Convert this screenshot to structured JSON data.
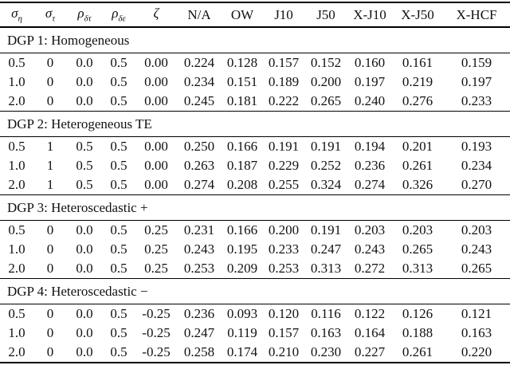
{
  "table": {
    "headers": [
      {
        "base": "σ",
        "sub": "η"
      },
      {
        "base": "σ",
        "sub": "τ"
      },
      {
        "base": "ρ",
        "sub": "δτ"
      },
      {
        "base": "ρ",
        "sub": "δε"
      },
      {
        "base": "ζ",
        "sub": ""
      },
      {
        "base": "N/A",
        "sub": ""
      },
      {
        "base": "OW",
        "sub": ""
      },
      {
        "base": "J10",
        "sub": ""
      },
      {
        "base": "J50",
        "sub": ""
      },
      {
        "base": "X-J10",
        "sub": ""
      },
      {
        "base": "X-J50",
        "sub": ""
      },
      {
        "base": "X-HCF",
        "sub": ""
      }
    ],
    "sections": [
      {
        "title": "DGP 1: Homogeneous",
        "rows": [
          [
            "0.5",
            "0",
            "0.0",
            "0.5",
            "0.00",
            "0.224",
            "0.128",
            "0.157",
            "0.152",
            "0.160",
            "0.161",
            "0.159"
          ],
          [
            "1.0",
            "0",
            "0.0",
            "0.5",
            "0.00",
            "0.234",
            "0.151",
            "0.189",
            "0.200",
            "0.197",
            "0.219",
            "0.197"
          ],
          [
            "2.0",
            "0",
            "0.0",
            "0.5",
            "0.00",
            "0.245",
            "0.181",
            "0.222",
            "0.265",
            "0.240",
            "0.276",
            "0.233"
          ]
        ]
      },
      {
        "title": "DGP 2: Heterogeneous TE",
        "rows": [
          [
            "0.5",
            "1",
            "0.5",
            "0.5",
            "0.00",
            "0.250",
            "0.166",
            "0.191",
            "0.191",
            "0.194",
            "0.201",
            "0.193"
          ],
          [
            "1.0",
            "1",
            "0.5",
            "0.5",
            "0.00",
            "0.263",
            "0.187",
            "0.229",
            "0.252",
            "0.236",
            "0.261",
            "0.234"
          ],
          [
            "2.0",
            "1",
            "0.5",
            "0.5",
            "0.00",
            "0.274",
            "0.208",
            "0.255",
            "0.324",
            "0.274",
            "0.326",
            "0.270"
          ]
        ]
      },
      {
        "title": "DGP 3: Heteroscedastic +",
        "rows": [
          [
            "0.5",
            "0",
            "0.0",
            "0.5",
            "0.25",
            "0.231",
            "0.166",
            "0.200",
            "0.191",
            "0.203",
            "0.203",
            "0.203"
          ],
          [
            "1.0",
            "0",
            "0.0",
            "0.5",
            "0.25",
            "0.243",
            "0.195",
            "0.233",
            "0.247",
            "0.243",
            "0.265",
            "0.243"
          ],
          [
            "2.0",
            "0",
            "0.0",
            "0.5",
            "0.25",
            "0.253",
            "0.209",
            "0.253",
            "0.313",
            "0.272",
            "0.313",
            "0.265"
          ]
        ]
      },
      {
        "title": "DGP 4: Heteroscedastic −",
        "rows": [
          [
            "0.5",
            "0",
            "0.0",
            "0.5",
            "-0.25",
            "0.236",
            "0.093",
            "0.120",
            "0.116",
            "0.122",
            "0.126",
            "0.121"
          ],
          [
            "1.0",
            "0",
            "0.0",
            "0.5",
            "-0.25",
            "0.247",
            "0.119",
            "0.157",
            "0.163",
            "0.164",
            "0.188",
            "0.163"
          ],
          [
            "2.0",
            "0",
            "0.0",
            "0.5",
            "-0.25",
            "0.258",
            "0.174",
            "0.210",
            "0.230",
            "0.227",
            "0.261",
            "0.220"
          ]
        ]
      }
    ]
  }
}
